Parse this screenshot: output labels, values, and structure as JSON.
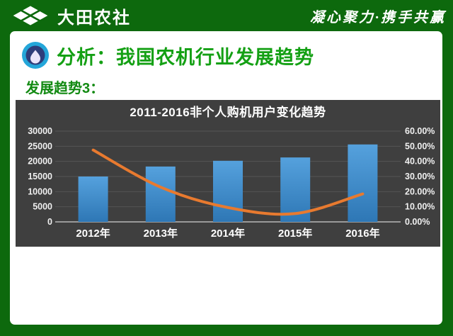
{
  "header": {
    "brand": "大田农社",
    "slogan": "凝心聚力·携手共赢"
  },
  "page": {
    "title": "分析：我国农机行业发展趋势",
    "section_label": "发展趋势3："
  },
  "icons": {
    "brand_logo": "four-leaf-diamond",
    "title_icon": "water-drop-in-circle"
  },
  "colors": {
    "header_green": "#0d690d",
    "title_green": "#14a014",
    "section_green": "#128a12",
    "chart_bg": "#3f3f3f",
    "grid_line": "#545454",
    "axis_line": "#b7b7b7",
    "axis_text": "#f0f0f0",
    "bar_top": "#55a1dd",
    "bar_bottom": "#2e77b5",
    "line_orange": "#e87a2f"
  },
  "chart_data": {
    "type": "bar",
    "combo": "bar+line",
    "title": "2011-2016非个人购机用户变化趋势",
    "categories": [
      "2012年",
      "2013年",
      "2014年",
      "2015年",
      "2016年"
    ],
    "series": [
      {
        "name": "bar-series",
        "type": "bar",
        "axis": "left",
        "color": "#3d86c8",
        "values": [
          15000,
          18300,
          20200,
          21300,
          25600
        ]
      },
      {
        "name": "line-series",
        "type": "line",
        "axis": "right",
        "color": "#e87a2f",
        "values": [
          47.5,
          23,
          9.5,
          5.5,
          18.5
        ]
      }
    ],
    "left_axis": {
      "min": 0,
      "max": 30000,
      "step": 5000,
      "ticks": [
        "0",
        "5000",
        "10000",
        "15000",
        "20000",
        "25000",
        "30000"
      ]
    },
    "right_axis": {
      "min": 0,
      "max": 60,
      "step": 10,
      "ticks": [
        "0.00%",
        "10.00%",
        "20.00%",
        "30.00%",
        "40.00%",
        "50.00%",
        "60.00%"
      ]
    },
    "grid": true,
    "legend": "none",
    "background": "#3f3f3f"
  }
}
